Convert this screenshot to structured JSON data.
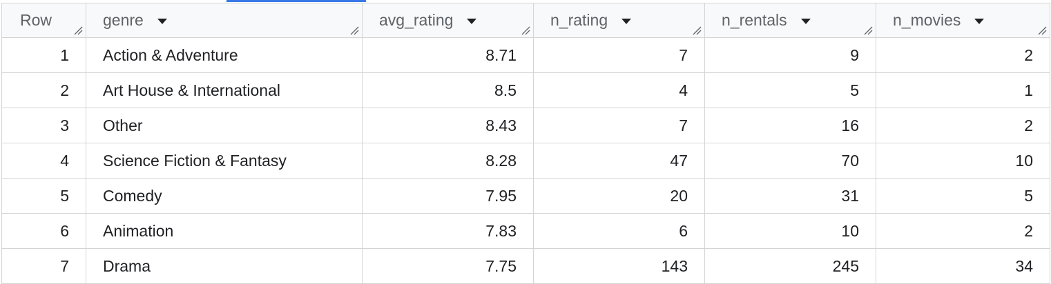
{
  "table": {
    "headers": {
      "row": "Row",
      "genre": "genre",
      "avg_rating": "avg_rating",
      "n_rating": "n_rating",
      "n_rentals": "n_rentals",
      "n_movies": "n_movies"
    },
    "rows": [
      {
        "row": "1",
        "genre": "Action & Adventure",
        "avg_rating": "8.71",
        "n_rating": "7",
        "n_rentals": "9",
        "n_movies": "2"
      },
      {
        "row": "2",
        "genre": "Art House & International",
        "avg_rating": "8.5",
        "n_rating": "4",
        "n_rentals": "5",
        "n_movies": "1"
      },
      {
        "row": "3",
        "genre": "Other",
        "avg_rating": "8.43",
        "n_rating": "7",
        "n_rentals": "16",
        "n_movies": "2"
      },
      {
        "row": "4",
        "genre": "Science Fiction & Fantasy",
        "avg_rating": "8.28",
        "n_rating": "47",
        "n_rentals": "70",
        "n_movies": "10"
      },
      {
        "row": "5",
        "genre": "Comedy",
        "avg_rating": "7.95",
        "n_rating": "20",
        "n_rentals": "31",
        "n_movies": "5"
      },
      {
        "row": "6",
        "genre": "Animation",
        "avg_rating": "7.83",
        "n_rating": "6",
        "n_rentals": "10",
        "n_movies": "2"
      },
      {
        "row": "7",
        "genre": "Drama",
        "avg_rating": "7.75",
        "n_rating": "143",
        "n_rentals": "245",
        "n_movies": "34"
      }
    ]
  },
  "icons": {
    "sort": "dropdown-arrow-icon",
    "resize": "column-resize-icon"
  },
  "colors": {
    "accent": "#3b78e7",
    "header_bg": "#f8f9fa",
    "border": "#d4d4d4"
  }
}
